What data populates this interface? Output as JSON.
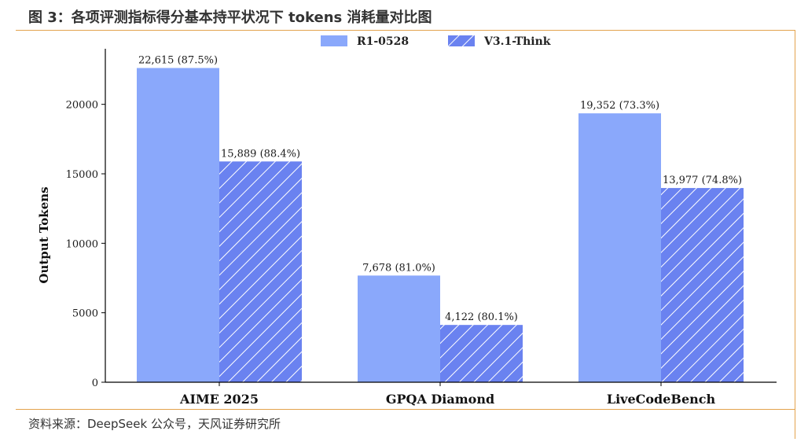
{
  "figure": {
    "title": "图 3：各项评测指标得分基本持平状况下 tokens 消耗量对比图",
    "source": "资料来源：DeepSeek 公众号，天风证券研究所"
  },
  "colors": {
    "series1": "#8aa8fb",
    "series2": "#6a82f0",
    "hatch": "#ffffff",
    "rule": "#e3a34d"
  },
  "chart_data": {
    "type": "bar",
    "title": "",
    "xlabel": "",
    "ylabel": "Output Tokens",
    "categories": [
      "AIME 2025",
      "GPQA Diamond",
      "LiveCodeBench"
    ],
    "ylim": [
      0,
      24000
    ],
    "yticks": [
      0,
      5000,
      10000,
      15000,
      20000
    ],
    "ytick_labels": [
      "0",
      "5000",
      "10000",
      "15000",
      "20000"
    ],
    "legend_position": "top",
    "grid": false,
    "series": [
      {
        "name": "R1-0528",
        "pattern": "solid",
        "values": [
          22615,
          7678,
          19352
        ],
        "labels": [
          "22,615 (87.5%)",
          "7,678 (81.0%)",
          "19,352 (73.3%)"
        ]
      },
      {
        "name": "V3.1-Think",
        "pattern": "hatched",
        "values": [
          15889,
          4122,
          13977
        ],
        "labels": [
          "15,889 (88.4%)",
          "4,122 (80.1%)",
          "13,977 (74.8%)"
        ]
      }
    ]
  }
}
